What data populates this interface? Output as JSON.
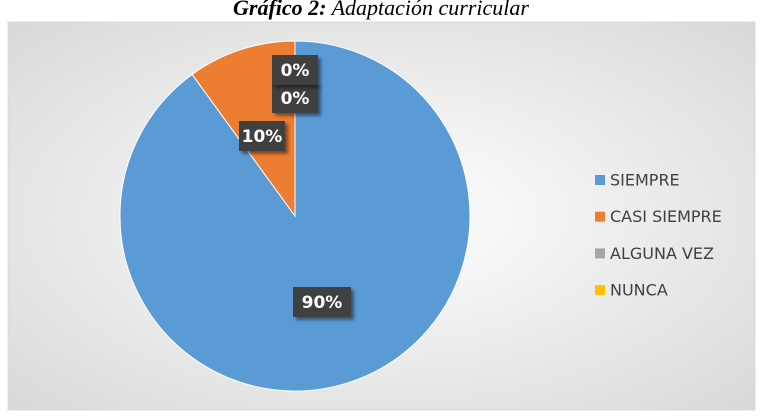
{
  "chart_data": {
    "type": "pie",
    "title_prefix": "Gráfico 2:",
    "title": "Adaptación curricular",
    "categories": [
      "SIEMPRE",
      "CASI SIEMPRE",
      "ALGUNA VEZ",
      "NUNCA"
    ],
    "values": [
      90,
      10,
      0,
      0
    ],
    "value_labels": [
      "90%",
      "10%",
      "0%",
      "0%"
    ],
    "colors": [
      "#5b9bd5",
      "#ed7d31",
      "#a5a5a5",
      "#ffc000"
    ],
    "legend": "right"
  }
}
